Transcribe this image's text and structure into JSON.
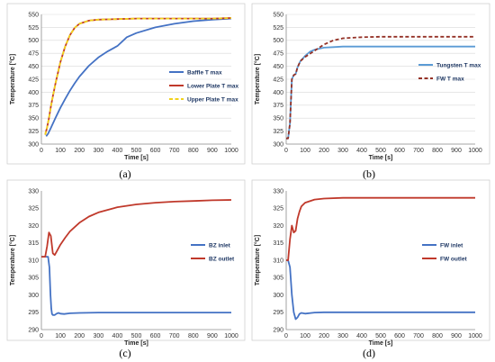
{
  "chart_data": [
    {
      "id": "a",
      "type": "line",
      "caption": "(a)",
      "xlabel": "Time [s]",
      "ylabel": "Temperature [°C]",
      "xlim": [
        0,
        1000
      ],
      "ylim": [
        300,
        550
      ],
      "xticks": [
        0,
        100,
        200,
        300,
        400,
        500,
        600,
        700,
        800,
        900,
        1000
      ],
      "yticks": [
        300,
        325,
        350,
        375,
        400,
        425,
        450,
        475,
        500,
        525,
        550
      ],
      "grid": true,
      "legend_position": "right",
      "series": [
        {
          "name": "Baffle T max",
          "color": "#4472c4",
          "dash": "solid",
          "x": [
            25,
            35,
            50,
            75,
            100,
            125,
            150,
            175,
            200,
            250,
            300,
            350,
            400,
            450,
            500,
            600,
            700,
            800,
            900,
            1000
          ],
          "y": [
            315,
            320,
            331,
            351,
            370,
            387,
            403,
            417,
            430,
            451,
            467,
            479,
            489,
            506,
            514,
            525,
            532,
            537,
            540,
            542
          ]
        },
        {
          "name": "Lower Plate T max",
          "color": "#c0392b",
          "dash": "solid",
          "x": [
            20,
            30,
            40,
            50,
            60,
            75,
            100,
            125,
            150,
            175,
            200,
            250,
            300,
            400,
            500,
            600,
            700,
            800,
            900,
            1000
          ],
          "y": [
            318,
            332,
            350,
            372,
            392,
            418,
            458,
            488,
            510,
            524,
            532,
            538,
            540,
            541,
            542,
            542,
            542,
            542,
            542,
            543
          ]
        },
        {
          "name": "Upper Plate T max",
          "color": "#f2d21b",
          "dash": "dashed",
          "x": [
            20,
            30,
            40,
            50,
            60,
            75,
            100,
            125,
            150,
            175,
            200,
            250,
            300,
            400,
            500,
            600,
            700,
            800,
            900,
            1000
          ],
          "y": [
            318,
            332,
            350,
            372,
            392,
            418,
            458,
            488,
            510,
            524,
            532,
            538,
            540,
            541,
            542,
            542,
            542,
            542,
            542,
            543
          ]
        }
      ]
    },
    {
      "id": "b",
      "type": "line",
      "caption": "(b)",
      "xlabel": "Time [s]",
      "ylabel": "Temperature [°C]",
      "xlim": [
        0,
        1000
      ],
      "ylim": [
        300,
        550
      ],
      "xticks": [
        0,
        100,
        200,
        300,
        400,
        500,
        600,
        700,
        800,
        900,
        1000
      ],
      "yticks": [
        300,
        325,
        350,
        375,
        400,
        425,
        450,
        475,
        500,
        525,
        550
      ],
      "grid": true,
      "legend_position": "right",
      "series": [
        {
          "name": "Tungsten T max",
          "color": "#5b9bd5",
          "dash": "solid",
          "x": [
            0,
            10,
            20,
            30,
            40,
            50,
            60,
            75,
            100,
            125,
            150,
            200,
            250,
            300,
            400,
            500,
            600,
            700,
            800,
            900,
            1000
          ],
          "y": [
            311,
            311,
            340,
            425,
            433,
            435,
            448,
            460,
            470,
            478,
            482,
            486,
            487,
            488,
            488,
            488,
            488,
            488,
            488,
            488,
            488
          ]
        },
        {
          "name": "FW T max",
          "color": "#943126",
          "dash": "dashed",
          "x": [
            0,
            10,
            20,
            30,
            40,
            50,
            60,
            75,
            100,
            125,
            150,
            200,
            250,
            300,
            400,
            500,
            600,
            700,
            800,
            900,
            1000
          ],
          "y": [
            311,
            311,
            340,
            425,
            433,
            435,
            448,
            460,
            468,
            474,
            480,
            492,
            500,
            504,
            506,
            507,
            507,
            507,
            507,
            507,
            507
          ]
        }
      ]
    },
    {
      "id": "c",
      "type": "line",
      "caption": "(c)",
      "xlabel": "Time [s]",
      "ylabel": "Temperature [°C]",
      "xlim": [
        0,
        1000
      ],
      "ylim": [
        290,
        330
      ],
      "xticks": [
        0,
        100,
        200,
        300,
        400,
        500,
        600,
        700,
        800,
        900,
        1000
      ],
      "yticks": [
        290,
        295,
        300,
        305,
        310,
        315,
        320,
        325,
        330
      ],
      "grid": false,
      "legend_position": "right",
      "series": [
        {
          "name": "BZ inlet",
          "color": "#4472c4",
          "dash": "solid",
          "x": [
            0,
            20,
            35,
            42,
            48,
            52,
            56,
            60,
            70,
            80,
            90,
            100,
            120,
            150,
            200,
            300,
            500,
            1000
          ],
          "y": [
            311,
            311,
            311,
            308,
            300,
            296,
            294.5,
            294.2,
            294.2,
            294.6,
            294.8,
            294.6,
            294.5,
            294.7,
            294.8,
            294.9,
            294.9,
            294.9
          ]
        },
        {
          "name": "BZ outlet",
          "color": "#c0392b",
          "dash": "solid",
          "x": [
            0,
            20,
            30,
            40,
            50,
            60,
            70,
            80,
            100,
            125,
            150,
            200,
            250,
            300,
            400,
            500,
            600,
            700,
            800,
            900,
            1000
          ],
          "y": [
            311,
            311,
            314,
            318,
            317,
            312,
            311.5,
            312.5,
            314.5,
            316.5,
            318.3,
            320.8,
            322.6,
            323.8,
            325.3,
            326.1,
            326.6,
            326.9,
            327.1,
            327.3,
            327.4
          ]
        }
      ]
    },
    {
      "id": "d",
      "type": "line",
      "caption": "(d)",
      "xlabel": "Time [s]",
      "ylabel": "Temperature [°C]",
      "xlim": [
        0,
        1000
      ],
      "ylim": [
        290,
        330
      ],
      "xticks": [
        0,
        100,
        200,
        300,
        400,
        500,
        600,
        700,
        800,
        900,
        1000
      ],
      "yticks": [
        290,
        295,
        300,
        305,
        310,
        315,
        320,
        325,
        330
      ],
      "grid": false,
      "legend_position": "right",
      "series": [
        {
          "name": "FW inlet",
          "color": "#4472c4",
          "dash": "solid",
          "x": [
            0,
            10,
            20,
            30,
            40,
            50,
            60,
            70,
            80,
            100,
            150,
            200,
            300,
            500,
            1000
          ],
          "y": [
            310,
            310,
            308,
            300,
            295,
            293,
            293.5,
            294.5,
            294.8,
            294.6,
            294.9,
            295,
            295,
            295,
            295
          ]
        },
        {
          "name": "FW outlet",
          "color": "#c0392b",
          "dash": "solid",
          "x": [
            0,
            10,
            20,
            30,
            40,
            50,
            60,
            70,
            80,
            100,
            150,
            200,
            300,
            400,
            500,
            1000
          ],
          "y": [
            310,
            310,
            316,
            320,
            318,
            318.5,
            322,
            324,
            325.5,
            326.6,
            327.5,
            327.8,
            328,
            328,
            328,
            328
          ]
        }
      ]
    }
  ]
}
